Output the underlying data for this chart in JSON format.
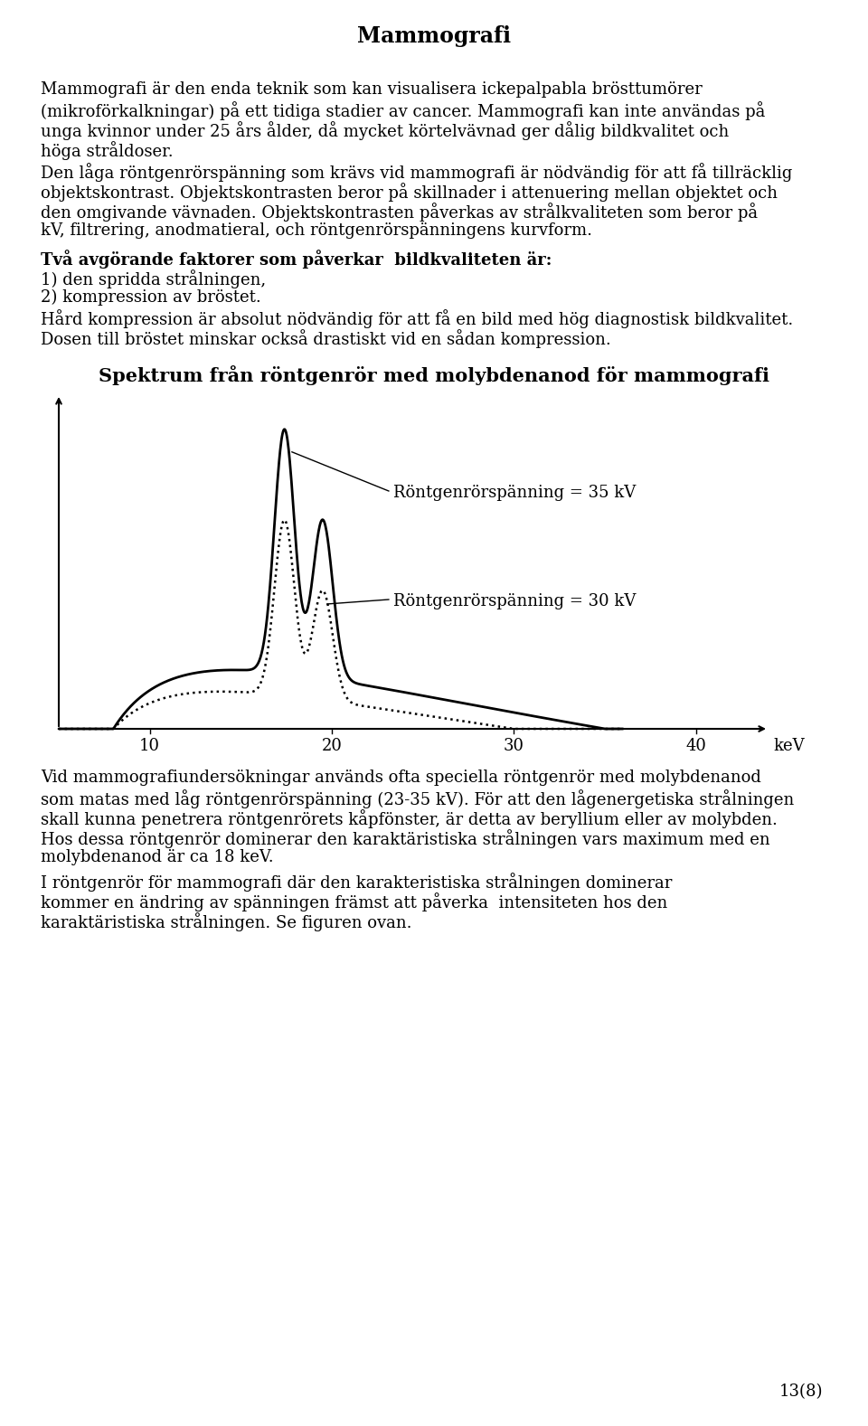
{
  "title": "Mammografi",
  "page_number": "13(8)",
  "background_color": "#ffffff",
  "text_color": "#000000",
  "para1": "Mammografi är den enda teknik som kan visualisera ickepalpabla brösttumörer\n(mikroförkalkningar) på ett tidiga stadier av cancer. Mammografi kan inte användas på\nunga kvinnor under 25 års ålder, då mycket körtelvävnad ger dålig bildkvalitet och\nhöga stråldoser.",
  "para2": "Den låga röntgenrörspänning som krävs vid mammografi är nödvändig för att få tillräcklig\nobjektskontrast. Objektskontrasten beror på skillnader i attenuering mellan objektet och\nden omgivande vävnaden. Objektskontrasten påverkas av strålkvaliteten som beror på\nkV, filtrering, anodmatieral, och röntgenrörspänningens kurvform.",
  "para3_bold": "Två avgörande faktorer som påverkar  bildkvaliteten är:",
  "para3_list": "1) den spridda strålningen,\n2) kompression av bröstet.",
  "para3_end": "Hård kompression är absolut nödvändig för att få en bild med hög diagnostisk bildkvalitet.\nDosen till bröstet minskar också drastiskt vid en sådan kompression.",
  "chart_title": "Spektrum från röntgenrör med molybdenanod för mammografi",
  "label_35kv": "Röntgenrörspänning = 35 kV",
  "label_30kv": "Röntgenrörspänning = 30 kV",
  "x_label": "keV",
  "x_ticks": [
    10,
    20,
    30,
    40
  ],
  "para4": "Vid mammografiundersökningar används ofta speciella röntgenrör med molybdenanod\nsom matas med låg röntgenrörspänning (23-35 kV). För att den lågenergetiska strålningen\nskall kunna penetrera röntgenrörets kåpfönster, är detta av beryllium eller av molybden.\nHos dessa röntgenrör dominerar den karaktäristiska strålningen vars maximum med en\nmolybdenanod är ca 18 keV.",
  "para5": "I röntgenrör för mammografi där den karakteristiska strålningen dominerar\nkommer en ändring av spänningen främst att påverka  intensiteten hos den\nkaraktäristiska strålningen. Se figuren ovan."
}
